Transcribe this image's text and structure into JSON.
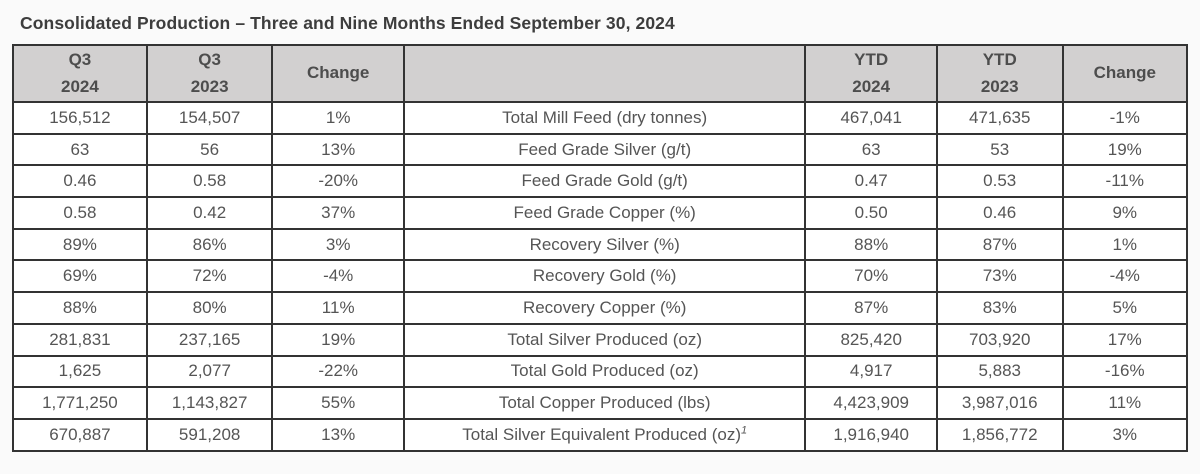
{
  "title": "Consolidated Production – Three and Nine Months Ended September 30, 2024",
  "colors": {
    "page_bg": "#fafafa",
    "header_bg": "#d2d0d0",
    "border": "#333333",
    "cell_text": "#555555",
    "title_text": "#3d3d3d"
  },
  "table": {
    "columns": [
      "q3_2024",
      "q3_2023",
      "change_q3",
      "metric",
      "ytd_2024",
      "ytd_2023",
      "change_ytd"
    ],
    "headers": [
      {
        "key": "q3_2024",
        "lines": [
          "Q3",
          "2024"
        ]
      },
      {
        "key": "q3_2023",
        "lines": [
          "Q3",
          "2023"
        ]
      },
      {
        "key": "change_q3",
        "lines": [
          "Change"
        ]
      },
      {
        "key": "metric",
        "lines": []
      },
      {
        "key": "ytd_2024",
        "lines": [
          "YTD",
          "2024"
        ]
      },
      {
        "key": "ytd_2023",
        "lines": [
          "YTD",
          "2023"
        ]
      },
      {
        "key": "change_ytd",
        "lines": [
          "Change"
        ]
      }
    ],
    "rows": [
      {
        "q3_2024": "156,512",
        "q3_2023": "154,507",
        "change_q3": "1%",
        "metric": "Total Mill Feed (dry tonnes)",
        "ytd_2024": "467,041",
        "ytd_2023": "471,635",
        "change_ytd": "-1%"
      },
      {
        "q3_2024": "63",
        "q3_2023": "56",
        "change_q3": "13%",
        "metric": "Feed Grade Silver (g/t)",
        "ytd_2024": "63",
        "ytd_2023": "53",
        "change_ytd": "19%"
      },
      {
        "q3_2024": "0.46",
        "q3_2023": "0.58",
        "change_q3": "-20%",
        "metric": "Feed Grade Gold (g/t)",
        "ytd_2024": "0.47",
        "ytd_2023": "0.53",
        "change_ytd": "-11%"
      },
      {
        "q3_2024": "0.58",
        "q3_2023": "0.42",
        "change_q3": "37%",
        "metric": "Feed Grade Copper (%)",
        "ytd_2024": "0.50",
        "ytd_2023": "0.46",
        "change_ytd": "9%"
      },
      {
        "q3_2024": "89%",
        "q3_2023": "86%",
        "change_q3": "3%",
        "metric": "Recovery Silver (%)",
        "ytd_2024": "88%",
        "ytd_2023": "87%",
        "change_ytd": "1%"
      },
      {
        "q3_2024": "69%",
        "q3_2023": "72%",
        "change_q3": "-4%",
        "metric": "Recovery Gold (%)",
        "ytd_2024": "70%",
        "ytd_2023": "73%",
        "change_ytd": "-4%"
      },
      {
        "q3_2024": "88%",
        "q3_2023": "80%",
        "change_q3": "11%",
        "metric": "Recovery Copper (%)",
        "ytd_2024": "87%",
        "ytd_2023": "83%",
        "change_ytd": "5%"
      },
      {
        "q3_2024": "281,831",
        "q3_2023": "237,165",
        "change_q3": "19%",
        "metric": "Total Silver Produced (oz)",
        "ytd_2024": "825,420",
        "ytd_2023": "703,920",
        "change_ytd": "17%"
      },
      {
        "q3_2024": "1,625",
        "q3_2023": "2,077",
        "change_q3": "-22%",
        "metric": "Total Gold Produced (oz)",
        "ytd_2024": "4,917",
        "ytd_2023": "5,883",
        "change_ytd": "-16%"
      },
      {
        "q3_2024": "1,771,250",
        "q3_2023": "1,143,827",
        "change_q3": "55%",
        "metric": "Total Copper Produced (lbs)",
        "ytd_2024": "4,423,909",
        "ytd_2023": "3,987,016",
        "change_ytd": "11%"
      },
      {
        "q3_2024": "670,887",
        "q3_2023": "591,208",
        "change_q3": "13%",
        "metric": "Total Silver Equivalent Produced (oz)",
        "metric_footnote": "1",
        "ytd_2024": "1,916,940",
        "ytd_2023": "1,856,772",
        "change_ytd": "3%"
      }
    ]
  }
}
